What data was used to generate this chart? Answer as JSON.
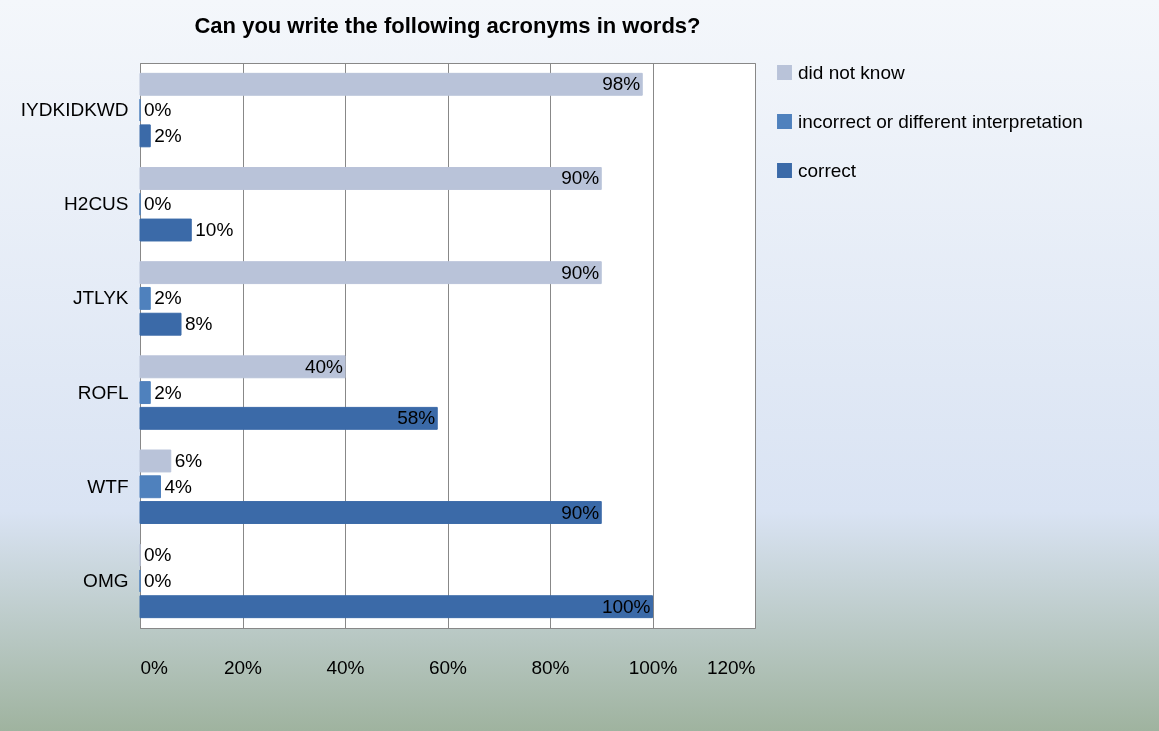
{
  "chart_data": {
    "type": "bar",
    "orientation": "horizontal",
    "title": "Can you write the following acronyms in words?",
    "categories": [
      "IYDKIDKWD",
      "H2CUS",
      "JTLYK",
      "ROFL",
      "WTF",
      "OMG"
    ],
    "series": [
      {
        "name": "did not know",
        "color": "#b9c3d9",
        "values": [
          98,
          90,
          90,
          40,
          6,
          0
        ],
        "value_labels": [
          "98%",
          "90%",
          "90%",
          "40%",
          "6%",
          "0%"
        ]
      },
      {
        "name": "incorrect or different interpretation",
        "color": "#4f81bd",
        "values": [
          0,
          0,
          2,
          2,
          4,
          0
        ],
        "value_labels": [
          "0%",
          "0%",
          "2%",
          "2%",
          "4%",
          "0%"
        ]
      },
      {
        "name": "correct",
        "color": "#3b6aa8",
        "values": [
          2,
          10,
          8,
          58,
          90,
          100
        ],
        "value_labels": [
          "2%",
          "10%",
          "8%",
          "58%",
          "90%",
          "100%"
        ]
      }
    ],
    "xlim": [
      0,
      120
    ],
    "xticks": [
      {
        "value": 0,
        "label": "0%"
      },
      {
        "value": 20,
        "label": "20%"
      },
      {
        "value": 40,
        "label": "40%"
      },
      {
        "value": 60,
        "label": "60%"
      },
      {
        "value": 80,
        "label": "80%"
      },
      {
        "value": 100,
        "label": "100%"
      },
      {
        "value": 120,
        "label": "120%"
      }
    ],
    "grid": "x",
    "legend": "right"
  }
}
